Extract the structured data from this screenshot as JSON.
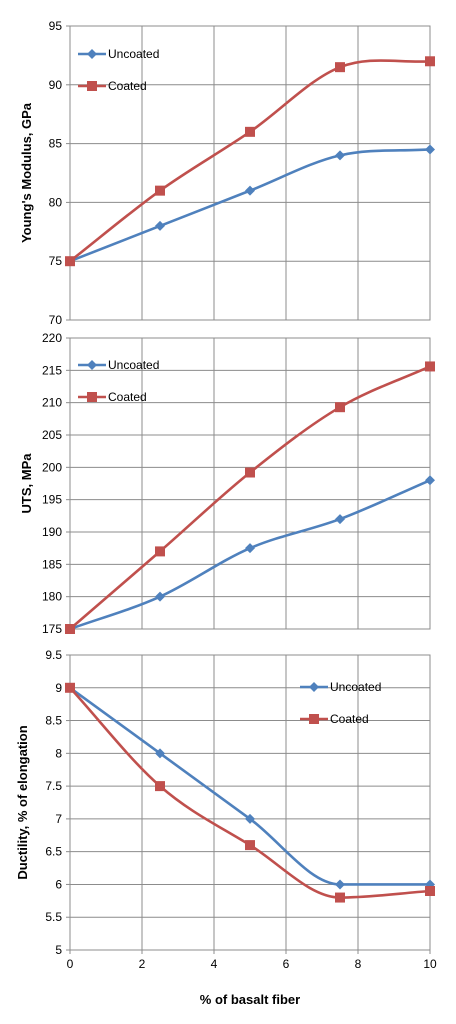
{
  "chart_data": [
    {
      "type": "line",
      "ylabel": "Young's  Modulus, GPa",
      "xlabel": "",
      "xlim": [
        0,
        10
      ],
      "ylim": [
        70,
        95
      ],
      "yticks": [
        "70",
        "75",
        "80",
        "85",
        "90",
        "95"
      ],
      "xticks": [],
      "grid": true,
      "legend_position": "top-left",
      "series": [
        {
          "name": "Uncoated",
          "color": "#4F81BD",
          "marker": "diamond",
          "x": [
            0,
            2.5,
            5,
            7.5,
            10
          ],
          "y": [
            75,
            78,
            81,
            84,
            84.5
          ]
        },
        {
          "name": "Coated",
          "color": "#C0504D",
          "marker": "square",
          "x": [
            0,
            2.5,
            5,
            7.5,
            10
          ],
          "y": [
            75,
            81,
            86,
            91.5,
            92
          ]
        }
      ]
    },
    {
      "type": "line",
      "ylabel": "UTS, MPa",
      "xlabel": "",
      "xlim": [
        0,
        10
      ],
      "ylim": [
        175,
        220
      ],
      "yticks": [
        "175",
        "180",
        "185",
        "190",
        "195",
        "200",
        "205",
        "210",
        "215",
        "220"
      ],
      "xticks": [],
      "grid": true,
      "legend_position": "top-left",
      "series": [
        {
          "name": "Uncoated",
          "color": "#4F81BD",
          "marker": "diamond",
          "x": [
            0,
            2.5,
            5,
            7.5,
            10
          ],
          "y": [
            175,
            180,
            187.5,
            192,
            198
          ]
        },
        {
          "name": "Coated",
          "color": "#C0504D",
          "marker": "square",
          "x": [
            0,
            2.5,
            5,
            7.5,
            10
          ],
          "y": [
            175,
            187,
            199.2,
            209.3,
            215.6
          ]
        }
      ]
    },
    {
      "type": "line",
      "ylabel": "Ductility, % of elongation",
      "xlabel": "% of basalt fiber",
      "xlim": [
        0,
        10
      ],
      "ylim": [
        5,
        9.5
      ],
      "yticks": [
        "5",
        "5.5",
        "6",
        "6.5",
        "7",
        "7.5",
        "8",
        "8.5",
        "9",
        "9.5"
      ],
      "xticks": [
        "0",
        "2",
        "4",
        "6",
        "8",
        "10"
      ],
      "grid": true,
      "legend_position": "top-right",
      "series": [
        {
          "name": "Uncoated",
          "color": "#4F81BD",
          "marker": "diamond",
          "x": [
            0,
            2.5,
            5,
            7.5,
            10
          ],
          "y": [
            9,
            8,
            7,
            6,
            6
          ]
        },
        {
          "name": "Coated",
          "color": "#C0504D",
          "marker": "square",
          "x": [
            0,
            2.5,
            5,
            7.5,
            10
          ],
          "y": [
            9,
            7.5,
            6.6,
            5.8,
            5.9
          ]
        }
      ]
    }
  ]
}
